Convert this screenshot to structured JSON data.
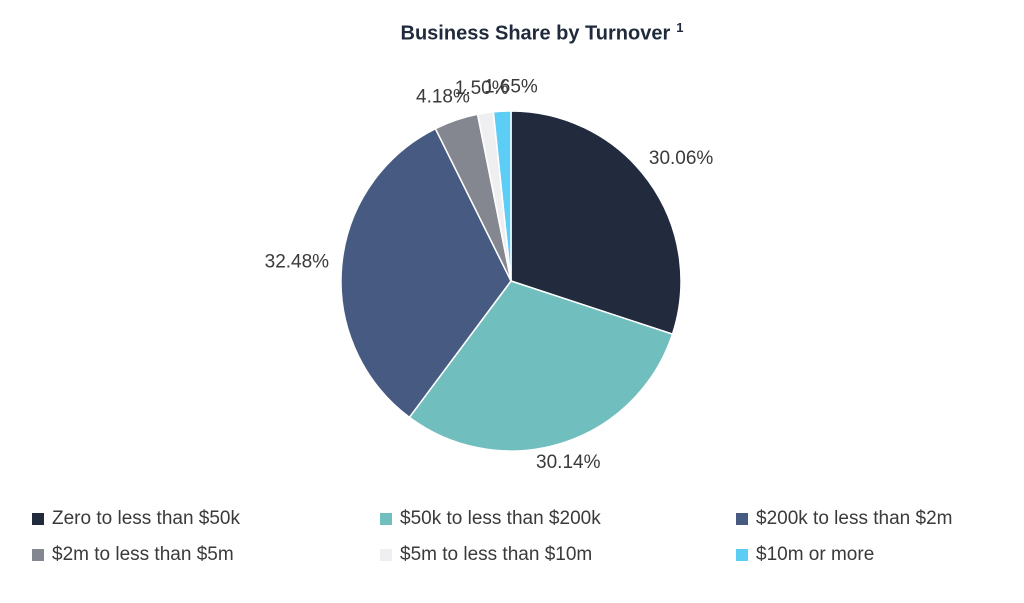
{
  "chart_title": "Business Share by Turnover",
  "title_footnote": "1",
  "chart_data": {
    "type": "pie",
    "title": "Business Share by Turnover",
    "slices": [
      {
        "label": "Zero to less than $50k",
        "value": 30.06,
        "display": "30.06%",
        "color": "#222a3d"
      },
      {
        "label": "$50k to less than $200k",
        "value": 30.14,
        "display": "30.14%",
        "color": "#70bebd"
      },
      {
        "label": "$200k to less than $2m",
        "value": 32.48,
        "display": "32.48%",
        "color": "#465a82"
      },
      {
        "label": "$2m to less than $5m",
        "value": 4.18,
        "display": "4.18%",
        "color": "#858790"
      },
      {
        "label": "$5m to less than $10m",
        "value": 1.5,
        "display": "1.50%",
        "color": "#efeff1"
      },
      {
        "label": "$10m or more",
        "value": 1.65,
        "display": "1.65%",
        "color": "#5ccdf5"
      }
    ],
    "legend_position": "bottom"
  }
}
